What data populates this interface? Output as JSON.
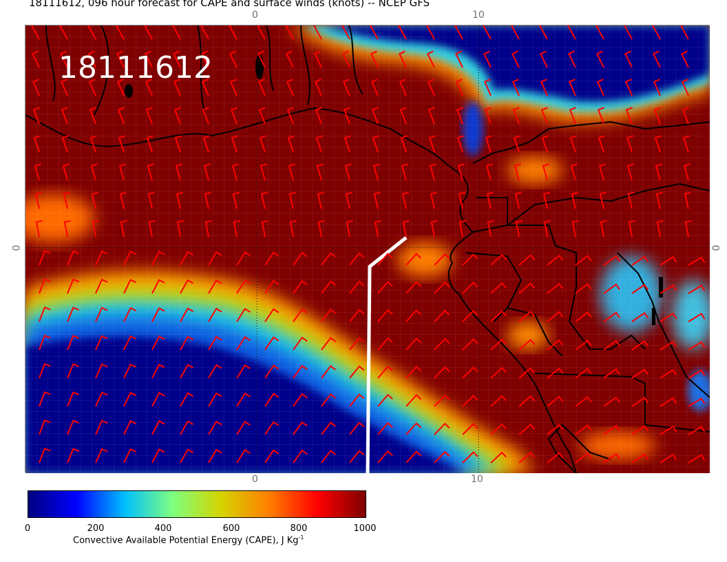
{
  "header": {
    "title": "18111612, 096 hour forecast for CAPE and surface winds (knots) -- NCEP GFS"
  },
  "map": {
    "stamp": "18111612",
    "top_ticks": [
      "0",
      "10"
    ],
    "bottom_ticks": [
      "0",
      "10"
    ],
    "left_tick": "0",
    "right_tick": "0"
  },
  "colorbar": {
    "ticks": [
      "0",
      "200",
      "400",
      "600",
      "800",
      "1000"
    ],
    "label": "Convective Available Potential Energy (CAPE), J Kg",
    "label_superscript": "-1",
    "range": [
      0,
      1000
    ],
    "colors": [
      "#00007f",
      "#0000ff",
      "#00bfff",
      "#7fff7f",
      "#d4d400",
      "#ff7f00",
      "#ff0000",
      "#7f0000"
    ]
  },
  "colors": {
    "high_cape": "#800000",
    "low_cape": "#00008b",
    "wind_barbs": "#ff0000",
    "coastline": "#000000",
    "track": "#ffffff"
  }
}
